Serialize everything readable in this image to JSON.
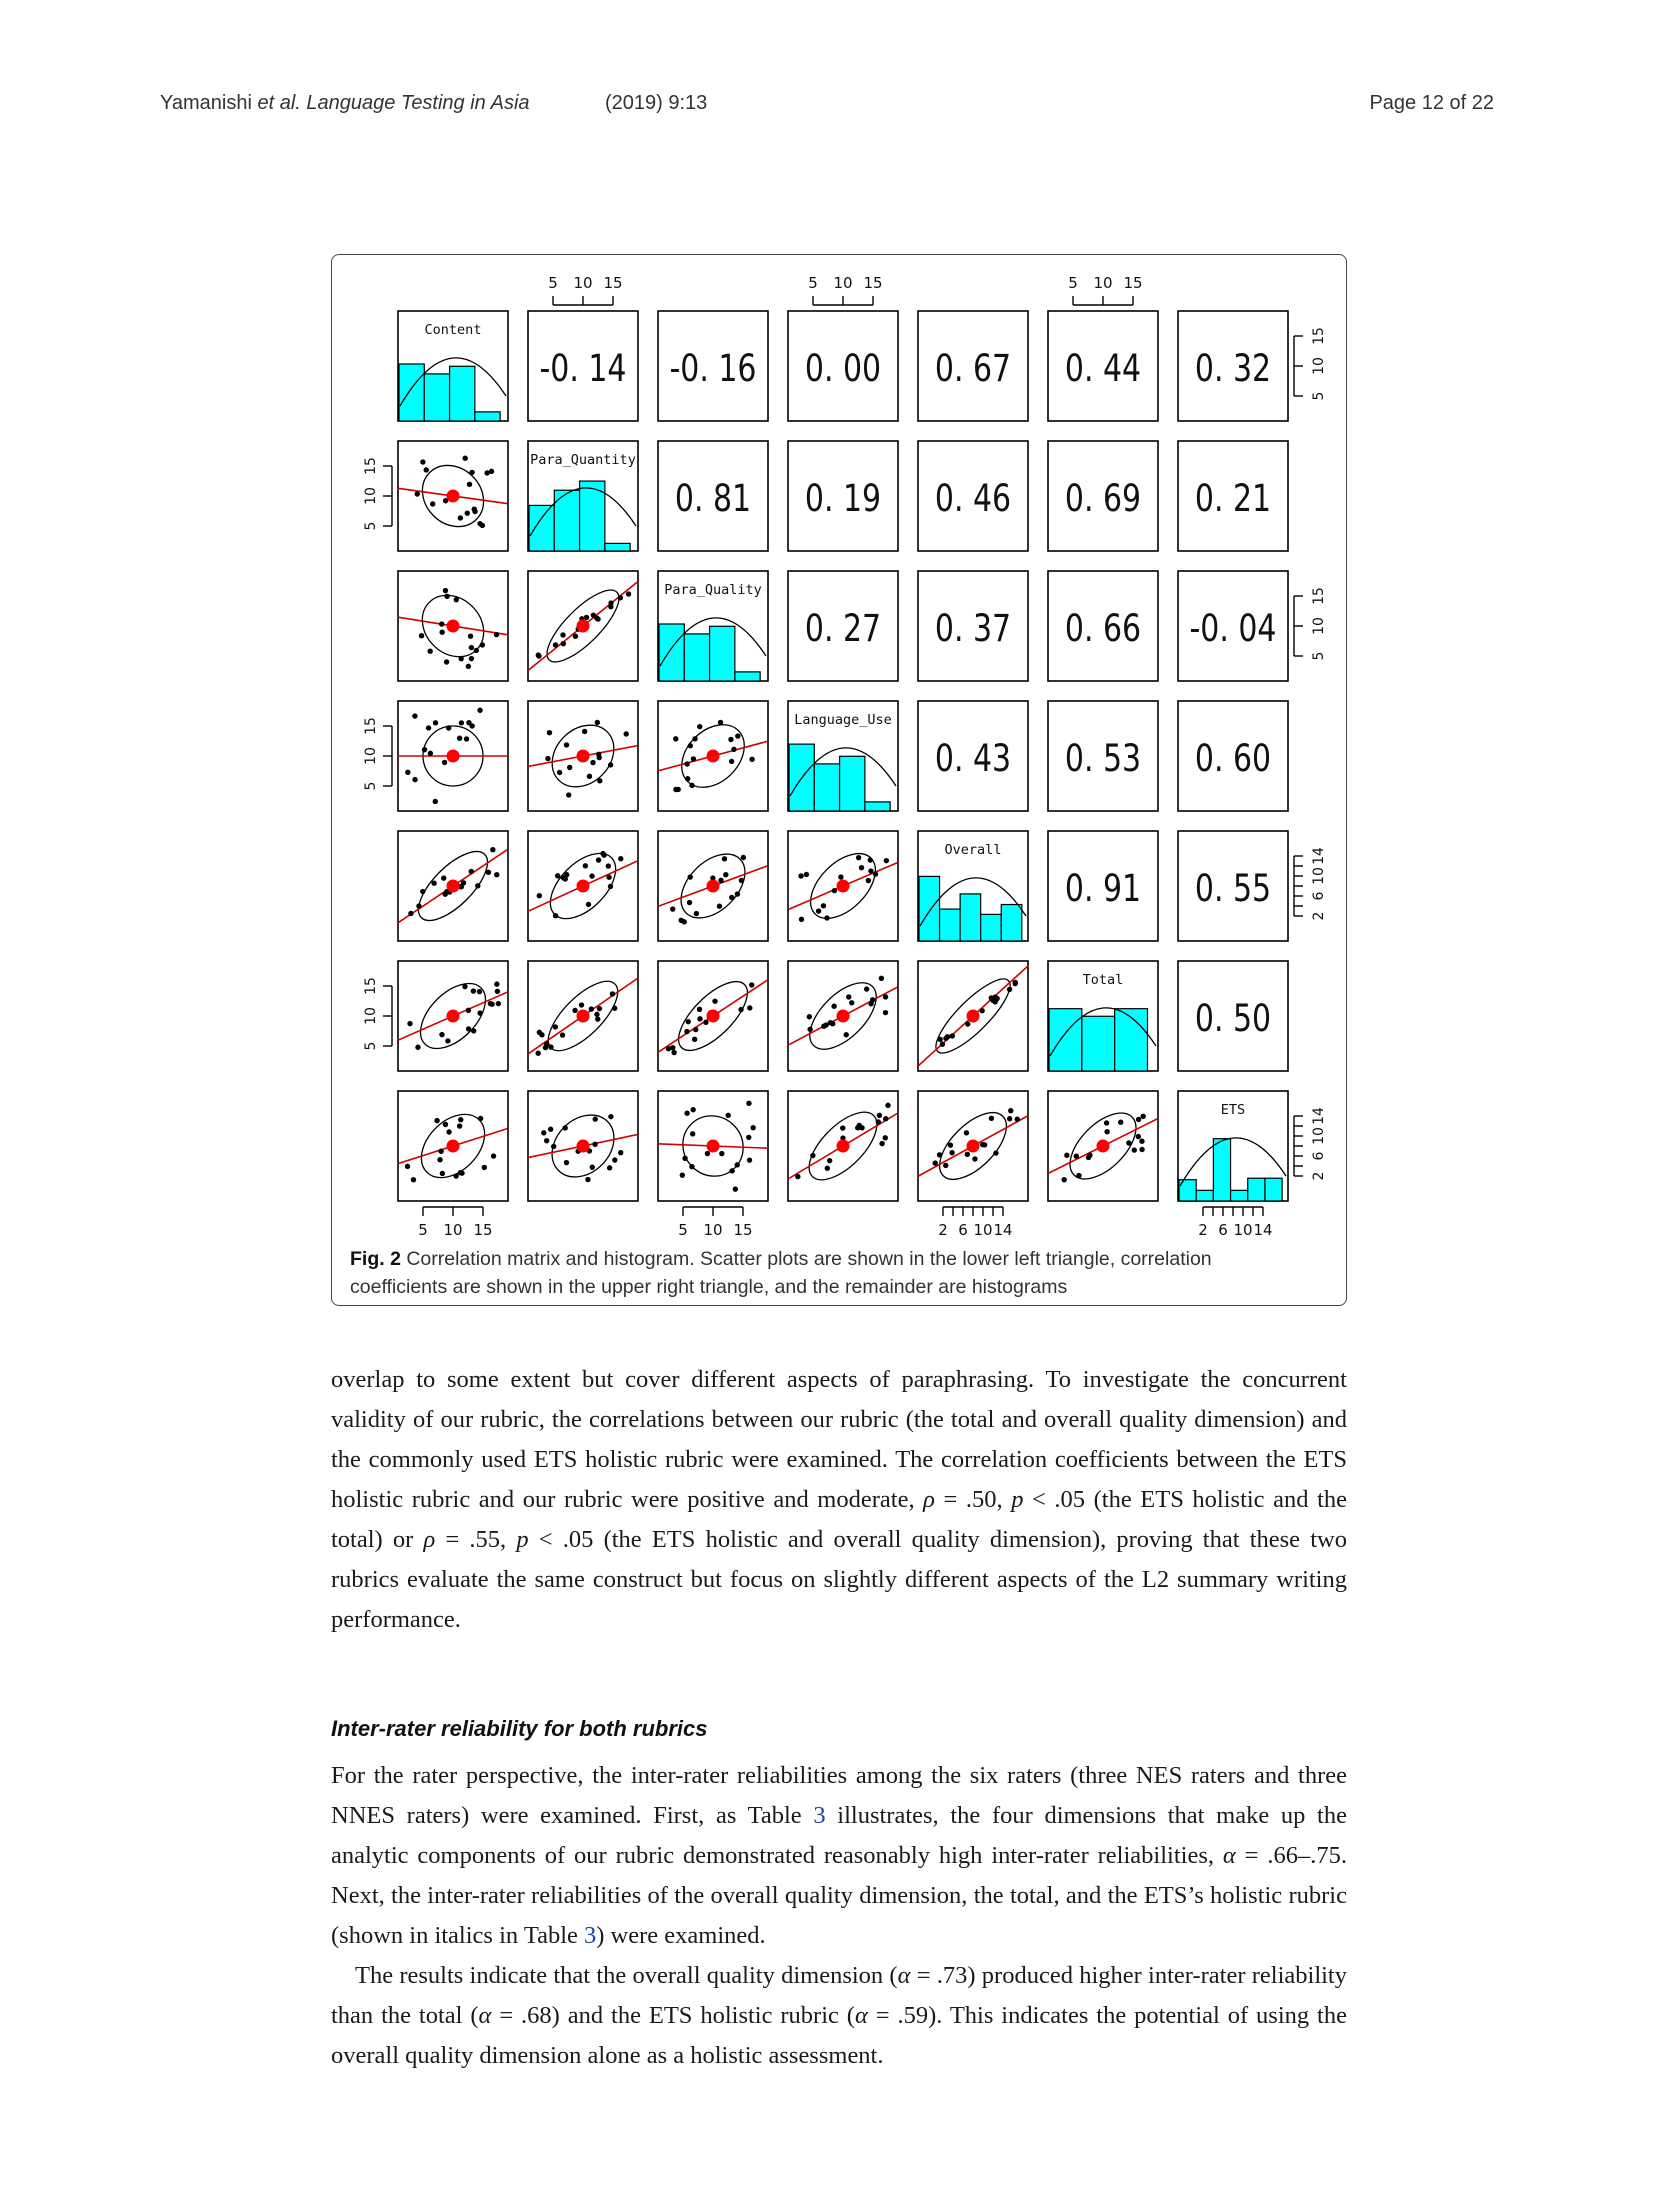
{
  "header": {
    "authors": "Yamanishi",
    "etal": "et al.",
    "journal": "Language Testing in Asia",
    "year_vol": "(2019) 9:13",
    "page": "Page 12 of 22"
  },
  "chart_data": {
    "type": "scatter-matrix",
    "variables": [
      "Content",
      "Para_Quantity",
      "Para_Quality",
      "Language_Use",
      "Overall",
      "Total",
      "ETS"
    ],
    "correlations": [
      [
        "",
        "-0. 14",
        "-0. 16",
        "0. 00",
        "0. 67",
        "0. 44",
        "0. 32"
      ],
      [
        "",
        "",
        "0. 81",
        "0. 19",
        "0. 46",
        "0. 69",
        "0. 21"
      ],
      [
        "",
        "",
        "",
        "0. 27",
        "0. 37",
        "0. 66",
        "-0. 04"
      ],
      [
        "",
        "",
        "",
        "",
        "0. 43",
        "0. 53",
        "0. 60"
      ],
      [
        "",
        "",
        "",
        "",
        "",
        "0. 91",
        "0. 55"
      ],
      [
        "",
        "",
        "",
        "",
        "",
        "",
        "0. 50"
      ]
    ],
    "correlation_values": [
      [
        1,
        -0.14,
        -0.16,
        0.0,
        0.67,
        0.44,
        0.32
      ],
      [
        -0.14,
        1,
        0.81,
        0.19,
        0.46,
        0.69,
        0.21
      ],
      [
        -0.16,
        0.81,
        1,
        0.27,
        0.37,
        0.66,
        -0.04
      ],
      [
        0.0,
        0.19,
        0.27,
        1,
        0.43,
        0.53,
        0.6
      ],
      [
        0.67,
        0.46,
        0.37,
        0.43,
        1,
        0.91,
        0.55
      ],
      [
        0.44,
        0.69,
        0.66,
        0.53,
        0.91,
        1,
        0.5
      ],
      [
        0.32,
        0.21,
        -0.04,
        0.6,
        0.55,
        0.5,
        1
      ]
    ],
    "histograms": [
      [
        0.75,
        0.62,
        0.72,
        0.12
      ],
      [
        0.6,
        0.8,
        0.92,
        0.1
      ],
      [
        0.75,
        0.62,
        0.72,
        0.12
      ],
      [
        0.88,
        0.62,
        0.72,
        0.12
      ],
      [
        0.85,
        0.42,
        0.62,
        0.35,
        0.48
      ],
      [
        0.82,
        0.72,
        0.82
      ],
      [
        0.28,
        0.14,
        0.82,
        0.14,
        0.3,
        0.3
      ]
    ],
    "axis_ticks": {
      "scale_5_15": [
        "5",
        "10",
        "15"
      ],
      "scale_2_14": [
        "2",
        "6",
        "10",
        "14"
      ]
    },
    "histogram_color": "#00ffff",
    "scatter_point_color": "#000000",
    "mean_point_color": "#ff0000",
    "fit_line_color": "#d00000"
  },
  "caption": {
    "label": "Fig. 2",
    "text": "Correlation matrix and histogram. Scatter plots are shown in the lower left triangle, correlation coefficients are shown in the upper right triangle, and the remainder are histograms"
  },
  "body": {
    "p1_a": "overlap to some extent but cover different aspects of paraphrasing. To investigate the concurrent validity of our rubric, the correlations between our rubric (the total and overall quality dimension) and the commonly used ETS holistic rubric were examined. The correlation coefficients between the ETS holistic rubric and our rubric were positive and moderate, ",
    "rho": "ρ",
    "p1_b": " = .50, ",
    "p": "p",
    "p1_c": " < .05 (the ETS holistic and the total) or ",
    "p1_d": " = .55, ",
    "p1_e": " < .05 (the ETS holistic and overall quality dimension), proving that these two rubrics evaluate the same construct but focus on slightly different aspects of the L2 summary writing performance.",
    "subhead": "Inter-rater reliability for both rubrics",
    "p2_a": "For the rater perspective, the inter-rater reliabilities among the six raters (three NES raters and three NNES raters) were examined. First, as Table ",
    "table_ref": "3",
    "p2_b": " illustrates, the four dimensions that make up the analytic components of our rubric demonstrated reasonably high inter-rater reliabilities, ",
    "alpha": "α",
    "p2_c": " = .66–.75. Next, the inter-rater reliabilities of the overall quality dimension, the total, and the ETS’s holistic rubric (shown in italics in Table ",
    "p2_d": ") were examined.",
    "p3_a": "The results indicate that the overall quality dimension (",
    "p3_b": " = .73) produced higher inter-rater reliability than the total (",
    "p3_c": " = .68) and the ETS holistic rubric (",
    "p3_d": " = .59). This indicates the potential of using the overall quality dimension alone as a holistic assessment."
  }
}
